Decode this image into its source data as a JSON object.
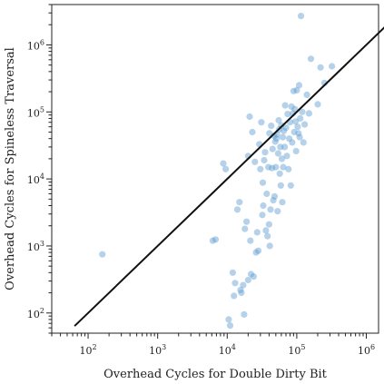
{
  "chart_data": {
    "type": "scatter",
    "title": "",
    "xlabel": "Overhead Cycles for Double Dirty Bit",
    "ylabel": "Overhead Cycles for Spineless Traversal",
    "x_scale": "log",
    "y_scale": "log",
    "xlim": [
      30,
      1500000
    ],
    "ylim": [
      50,
      4000000
    ],
    "grid": false,
    "legend": "none",
    "x_ticks": [
      {
        "base": "10",
        "exp": "2"
      },
      {
        "base": "10",
        "exp": "3"
      },
      {
        "base": "10",
        "exp": "4"
      },
      {
        "base": "10",
        "exp": "5"
      },
      {
        "base": "10",
        "exp": "6"
      }
    ],
    "y_ticks": [
      {
        "base": "10",
        "exp": "2"
      },
      {
        "base": "10",
        "exp": "3"
      },
      {
        "base": "10",
        "exp": "4"
      },
      {
        "base": "10",
        "exp": "5"
      },
      {
        "base": "10",
        "exp": "6"
      }
    ],
    "colors": {
      "points": "#5b9bd0",
      "reference_line": "#111111"
    },
    "reference_line": {
      "from": [
        65,
        65
      ],
      "to": [
        2800000,
        2800000
      ]
    },
    "points": [
      [
        160,
        750
      ],
      [
        6200,
        1200
      ],
      [
        6800,
        1250
      ],
      [
        8800,
        17000
      ],
      [
        9500,
        14000
      ],
      [
        10500,
        80
      ],
      [
        11000,
        65
      ],
      [
        12000,
        400
      ],
      [
        12500,
        180
      ],
      [
        13000,
        280
      ],
      [
        14000,
        3500
      ],
      [
        15000,
        4500
      ],
      [
        15500,
        220
      ],
      [
        16000,
        200
      ],
      [
        17000,
        260
      ],
      [
        17500,
        95
      ],
      [
        18000,
        1800
      ],
      [
        19000,
        2300
      ],
      [
        20000,
        310
      ],
      [
        20000,
        22000
      ],
      [
        21000,
        85000
      ],
      [
        21500,
        1200
      ],
      [
        22000,
        380
      ],
      [
        23000,
        50000
      ],
      [
        24000,
        350
      ],
      [
        25000,
        18000
      ],
      [
        26000,
        800
      ],
      [
        27000,
        1600
      ],
      [
        28000,
        850
      ],
      [
        29000,
        33000
      ],
      [
        30000,
        14000
      ],
      [
        31000,
        70000
      ],
      [
        32000,
        2900
      ],
      [
        32500,
        8800
      ],
      [
        33000,
        4000
      ],
      [
        34000,
        19000
      ],
      [
        35000,
        25000
      ],
      [
        36000,
        1700
      ],
      [
        37000,
        6000
      ],
      [
        38000,
        1400
      ],
      [
        39000,
        15000
      ],
      [
        40000,
        2100
      ],
      [
        40500,
        48000
      ],
      [
        41000,
        1000
      ],
      [
        42000,
        3500
      ],
      [
        43000,
        62000
      ],
      [
        44000,
        14500
      ],
      [
        45000,
        28000
      ],
      [
        46000,
        4800
      ],
      [
        47000,
        44000
      ],
      [
        48000,
        5500
      ],
      [
        49000,
        36000
      ],
      [
        50000,
        15000
      ],
      [
        51000,
        40000
      ],
      [
        52000,
        46000
      ],
      [
        53000,
        3300
      ],
      [
        54000,
        24000
      ],
      [
        55000,
        75000
      ],
      [
        56000,
        55000
      ],
      [
        57000,
        12000
      ],
      [
        58000,
        30000
      ],
      [
        59000,
        8000
      ],
      [
        60000,
        63000
      ],
      [
        61000,
        20000
      ],
      [
        62000,
        4500
      ],
      [
        63000,
        42000
      ],
      [
        64000,
        15000
      ],
      [
        65000,
        52000
      ],
      [
        67000,
        30000
      ],
      [
        68000,
        125000
      ],
      [
        70000,
        58000
      ],
      [
        72000,
        22000
      ],
      [
        74000,
        93000
      ],
      [
        76000,
        14000
      ],
      [
        78000,
        40000
      ],
      [
        80000,
        70000
      ],
      [
        82000,
        8000
      ],
      [
        84000,
        120000
      ],
      [
        86000,
        35000
      ],
      [
        88000,
        95000
      ],
      [
        90000,
        205000
      ],
      [
        92000,
        50000
      ],
      [
        94000,
        110000
      ],
      [
        96000,
        72000
      ],
      [
        98000,
        26000
      ],
      [
        100000,
        210000
      ],
      [
        103000,
        60000
      ],
      [
        106000,
        48000
      ],
      [
        108000,
        250000
      ],
      [
        110000,
        42000
      ],
      [
        112000,
        80000
      ],
      [
        115000,
        2700000
      ],
      [
        120000,
        100000
      ],
      [
        125000,
        35000
      ],
      [
        130000,
        65000
      ],
      [
        140000,
        180000
      ],
      [
        150000,
        95000
      ],
      [
        160000,
        620000
      ],
      [
        200000,
        130000
      ],
      [
        220000,
        460000
      ],
      [
        250000,
        270000
      ],
      [
        320000,
        480000
      ]
    ]
  }
}
